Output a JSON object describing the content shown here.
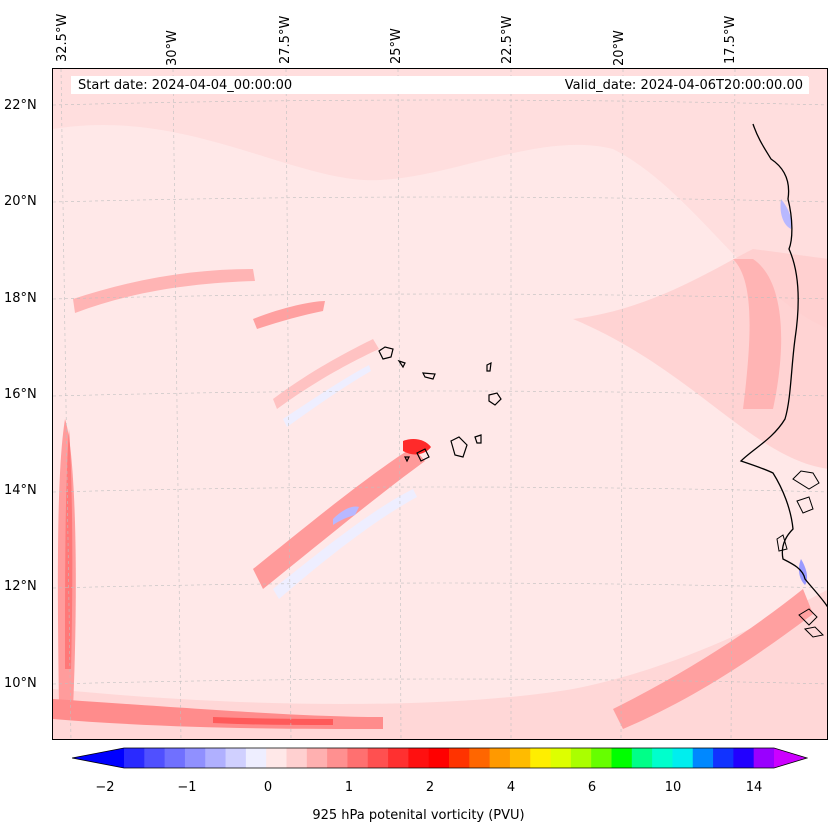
{
  "header": {
    "start_date": "Start date: 2024-04-04_00:00:00",
    "valid_date": "Valid_date: 2024-04-06T20:00:00.00"
  },
  "map": {
    "lon_labels": [
      "32.5°W",
      "30°W",
      "27.5°W",
      "25°W",
      "22.5°W",
      "20°W",
      "17.5°W"
    ],
    "lat_labels": [
      "22°N",
      "20°N",
      "18°N",
      "16°N",
      "14°N",
      "12°N",
      "10°N"
    ],
    "gridlines": "dashed",
    "coastline_color": "#000000"
  },
  "colorbar": {
    "title": "925 hPa potenital vorticity (PVU)",
    "tick_labels": [
      "−2",
      "−1",
      "0",
      "1",
      "2",
      "4",
      "6",
      "10",
      "14"
    ],
    "colors": [
      "#0000ff",
      "#2a2aff",
      "#5050ff",
      "#7070ff",
      "#9090ff",
      "#b0b0ff",
      "#d0d0ff",
      "#eeeeff",
      "#ffe8e8",
      "#ffd0d0",
      "#ffb0b0",
      "#ff9090",
      "#ff7070",
      "#ff5050",
      "#ff3030",
      "#ff1010",
      "#ff0000",
      "#ff3300",
      "#ff6600",
      "#ff9900",
      "#ffbb00",
      "#ffee00",
      "#ddff00",
      "#aaff00",
      "#66ff00",
      "#00ff00",
      "#00ff88",
      "#00ffcc",
      "#00eeee",
      "#0088ff",
      "#1133ff",
      "#2200ff",
      "#9900ff",
      "#cc00ff"
    ]
  }
}
